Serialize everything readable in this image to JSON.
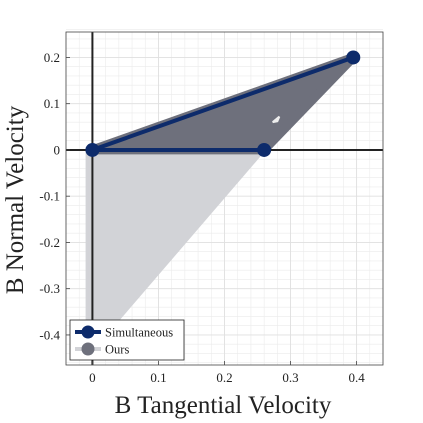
{
  "chart_data": {
    "type": "area",
    "xlabel": "B Tangential Velocity",
    "ylabel": "B Normal Velocity",
    "xlim": [
      -0.04,
      0.44
    ],
    "ylim": [
      -0.465,
      0.255
    ],
    "xticks": [
      0,
      0.1,
      0.2,
      0.3,
      0.4
    ],
    "xtick_labels": [
      "0",
      "0.1",
      "0.2",
      "0.3",
      "0.4"
    ],
    "yticks": [
      0.2,
      0.1,
      0,
      -0.1,
      -0.2,
      -0.3,
      -0.4
    ],
    "ytick_labels": [
      "0.2",
      "0.1",
      "0",
      "-0.1",
      "-0.2",
      "-0.3",
      "-0.4"
    ],
    "grid": true,
    "legend_position": "bottom-left",
    "colors": {
      "simultaneous": "#0d2b6b",
      "ours": "#6e707c",
      "ours_light": "#d2d3d7",
      "axes_lines": "#222222",
      "grid": "#ebebeb"
    },
    "series": [
      {
        "name": "Simultaneous",
        "points": [
          [
            0,
            0
          ],
          [
            0.395,
            0.2
          ],
          [
            0,
            0
          ],
          [
            0.26,
            0
          ]
        ]
      },
      {
        "name": "Ours",
        "polygon": [
          [
            0,
            0
          ],
          [
            0.395,
            0.2
          ],
          [
            0.26,
            0
          ]
        ],
        "light_polygon": [
          [
            -0.008,
            0
          ],
          [
            0.26,
            0
          ],
          [
            0.01,
            -0.415
          ],
          [
            -0.008,
            -0.415
          ]
        ],
        "markers": [
          [
            0,
            0
          ],
          [
            0.395,
            0.2
          ],
          [
            0.26,
            0
          ]
        ]
      }
    ]
  }
}
